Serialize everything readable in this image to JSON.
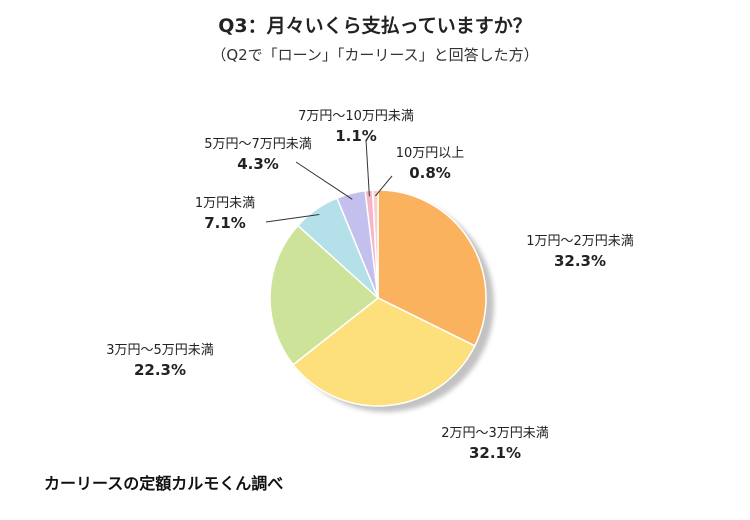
{
  "chart_data": {
    "type": "pie",
    "title": "Q3：月々いくら支払っていますか？",
    "subtitle": "（Q2で「ローン」「カーリース」と回答した方）",
    "slices": [
      {
        "label": "1万円〜2万円未満",
        "value": 32.3,
        "value_text": "32.3%",
        "color": "#fbb25e"
      },
      {
        "label": "2万円〜3万円未満",
        "value": 32.1,
        "value_text": "32.1%",
        "color": "#fde07c"
      },
      {
        "label": "3万円〜5万円未満",
        "value": 22.3,
        "value_text": "22.3%",
        "color": "#cde39a"
      },
      {
        "label": "1万円未満",
        "value": 7.1,
        "value_text": "7.1%",
        "color": "#b4e0ea"
      },
      {
        "label": "5万円〜7万円未満",
        "value": 4.3,
        "value_text": "4.3%",
        "color": "#c4c0ee"
      },
      {
        "label": "7万円〜10万円未満",
        "value": 1.1,
        "value_text": "1.1%",
        "color": "#f6b5c8"
      },
      {
        "label": "10万円以上",
        "value": 0.8,
        "value_text": "0.8%",
        "color": "#f8d0cc"
      }
    ]
  },
  "source": "カーリースの定額カルモくん調べ"
}
